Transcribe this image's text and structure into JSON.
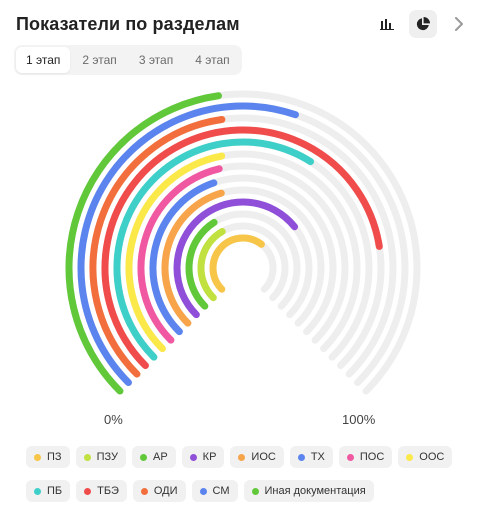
{
  "title": "Показатели по разделам",
  "toolbar": {
    "bar_icon": "bar-chart-icon",
    "pie_icon": "pie-chart-icon",
    "next_icon": "chevron-right-icon"
  },
  "tabs": [
    {
      "label": "1 этап",
      "active": true
    },
    {
      "label": "2 этап",
      "active": false
    },
    {
      "label": "3 этап",
      "active": false
    },
    {
      "label": "4 этап",
      "active": false
    }
  ],
  "axis": {
    "min_label": "0%",
    "max_label": "100%"
  },
  "chart_data": {
    "type": "radial-bar",
    "value_range": [
      0,
      100
    ],
    "track_color": "#eeeeee",
    "series": [
      {
        "name": "ПЗ",
        "value": 64,
        "color": "#f7c548"
      },
      {
        "name": "ПЗУ",
        "value": 39,
        "color": "#c1e140"
      },
      {
        "name": "АР",
        "value": 38,
        "color": "#61c83a"
      },
      {
        "name": "КР",
        "value": 69,
        "color": "#8f4fd9"
      },
      {
        "name": "ИОС",
        "value": 44,
        "color": "#f7a44a"
      },
      {
        "name": "ТХ",
        "value": 43,
        "color": "#5b84ee"
      },
      {
        "name": "ПОС",
        "value": 45,
        "color": "#f059a1"
      },
      {
        "name": "ООС",
        "value": 46,
        "color": "#fbe94a"
      },
      {
        "name": "ПБ",
        "value": 62,
        "color": "#3fcfc9"
      },
      {
        "name": "ТБЭ",
        "value": 80,
        "color": "#f14c4c"
      },
      {
        "name": "ОДИ",
        "value": 47,
        "color": "#f26f3d"
      },
      {
        "name": "СМ",
        "value": 57,
        "color": "#5b84ee"
      },
      {
        "name": "Иная документация",
        "value": 47,
        "color": "#61c83a"
      }
    ]
  }
}
